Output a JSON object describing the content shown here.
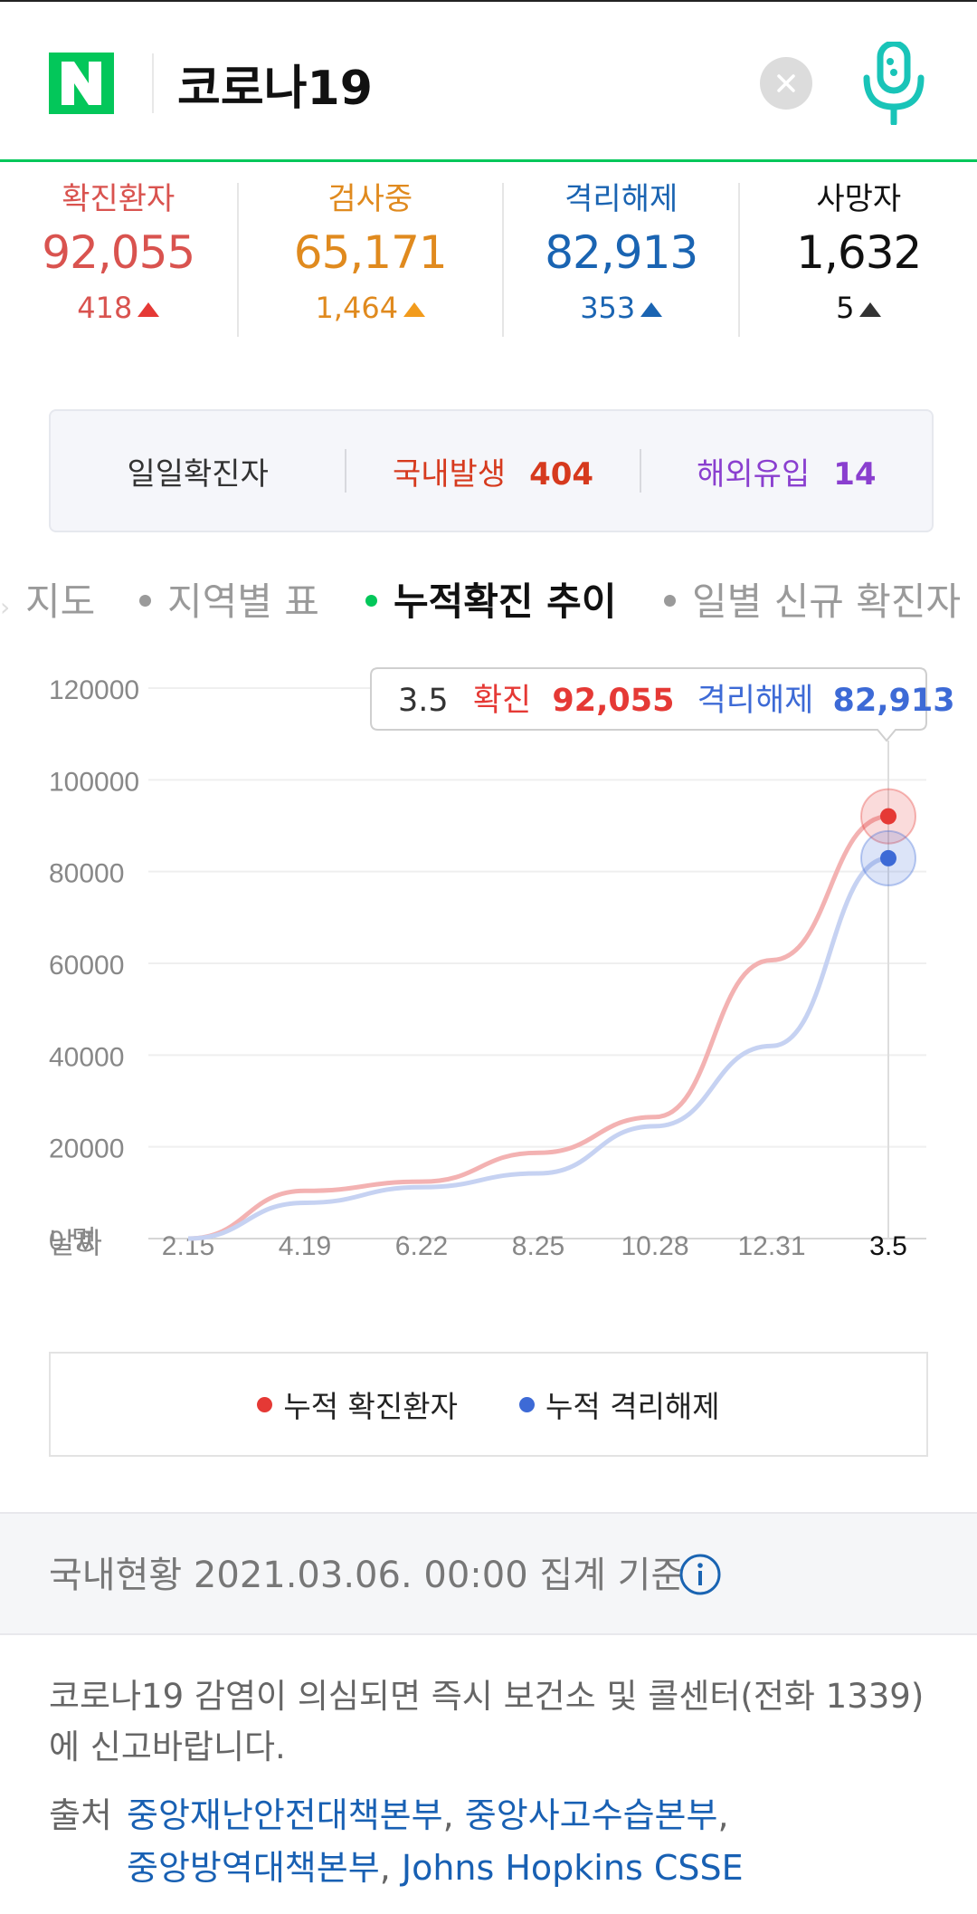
{
  "search": {
    "query": "코로나19"
  },
  "stats": [
    {
      "label": "확진환자",
      "value": "92,055",
      "delta": "418",
      "color": "#d9534f"
    },
    {
      "label": "검사중",
      "value": "65,171",
      "delta": "1,464",
      "color": "#e08a1e"
    },
    {
      "label": "격리해제",
      "value": "82,913",
      "delta": "353",
      "color": "#1a64b2"
    },
    {
      "label": "사망자",
      "value": "1,632",
      "delta": "5",
      "color": "#111111"
    }
  ],
  "daily": {
    "label": "일일확진자",
    "domestic_label": "국내발생",
    "domestic_value": "404",
    "overseas_label": "해외유입",
    "overseas_value": "14"
  },
  "tabs": [
    {
      "label": "지도"
    },
    {
      "label": "지역별 표"
    },
    {
      "label": "누적확진 추이",
      "active": true
    },
    {
      "label": "일별 신규 확진자"
    }
  ],
  "tooltip": {
    "date": "3.5",
    "confirmed_label": "확진",
    "confirmed_value": "92,055",
    "released_label": "격리해제",
    "released_value": "82,913"
  },
  "chart_data": {
    "type": "line",
    "xlabel": "날짜",
    "ylabel_unit": "명",
    "x": [
      "2.15",
      "4.19",
      "6.22",
      "8.25",
      "10.28",
      "12.31",
      "3.5"
    ],
    "ylim": [
      0,
      120000
    ],
    "yticks": [
      0,
      20000,
      40000,
      60000,
      80000,
      100000,
      120000
    ],
    "series": [
      {
        "name": "누적 확진환자",
        "color": "#e53935",
        "values": [
          0,
          10400,
          12400,
          18700,
          26500,
          60700,
          92055
        ]
      },
      {
        "name": "누적 격리해제",
        "color": "#3d6ad6",
        "values": [
          0,
          7800,
          11200,
          14200,
          24500,
          42000,
          82913
        ]
      }
    ]
  },
  "legend": [
    {
      "label": "누적 확진환자",
      "color": "#e53935"
    },
    {
      "label": "누적 격리해제",
      "color": "#3d6ad6"
    }
  ],
  "footer": {
    "basis": "국내현황 2021.03.06. 00:00 집계 기준",
    "notice": "코로나19 감염이 의심되면 즉시 보건소 및 콜센터(전화 1339)에 신고바랍니다.",
    "source_label": "출처",
    "sources": [
      "중앙재난안전대책본부",
      "중앙사고수습본부",
      "중앙방역대책본부",
      "Johns Hopkins CSSE"
    ]
  }
}
